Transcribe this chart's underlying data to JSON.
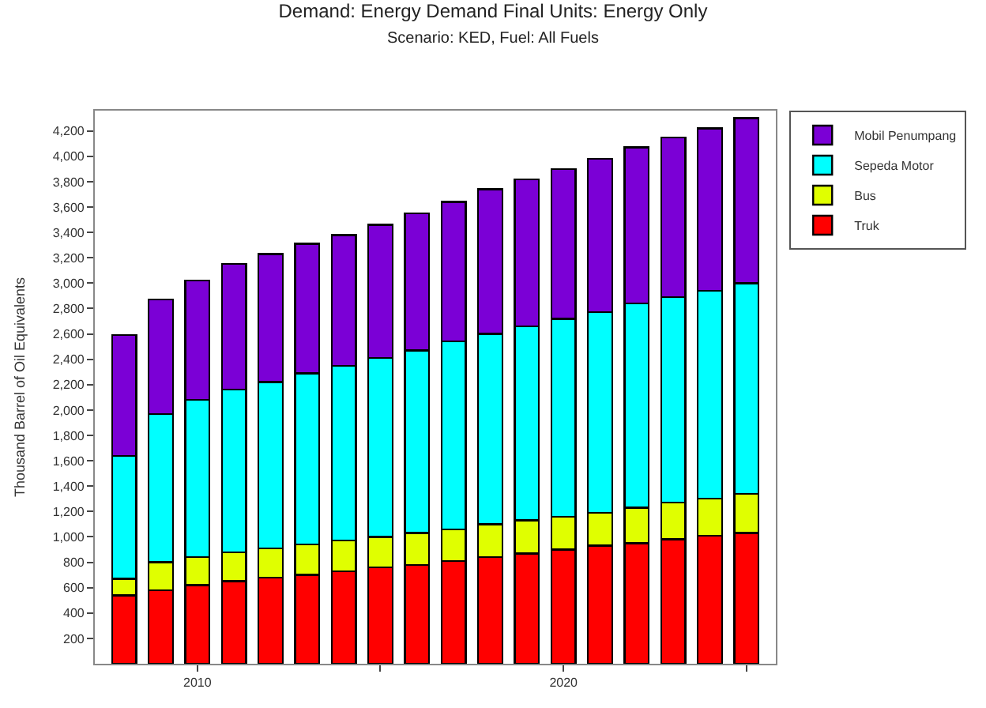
{
  "chart_data": {
    "type": "bar",
    "stacked": true,
    "title": "Demand: Energy Demand Final Units: Energy Only",
    "subtitle": "Scenario: KED, Fuel: All Fuels",
    "ylabel": "Thousand Barrel of Oil Equivalents",
    "x": [
      2008,
      2009,
      2010,
      2011,
      2012,
      2013,
      2014,
      2015,
      2016,
      2017,
      2018,
      2019,
      2020,
      2021,
      2022,
      2023,
      2024,
      2025
    ],
    "xlim": [
      2007.2,
      2025.8
    ],
    "xticks": [
      2010,
      {
        "value": 2015,
        "label": null
      },
      2020,
      {
        "value": 2025,
        "label": null
      }
    ],
    "ylim": [
      0,
      4360
    ],
    "yticks": [
      {
        "value": 200,
        "label": "200"
      },
      {
        "value": 400,
        "label": "400"
      },
      {
        "value": 600,
        "label": "600"
      },
      {
        "value": 800,
        "label": "800"
      },
      {
        "value": 1000,
        "label": "1,000"
      },
      {
        "value": 1200,
        "label": "1,200"
      },
      {
        "value": 1400,
        "label": "1,400"
      },
      {
        "value": 1600,
        "label": "1,600"
      },
      {
        "value": 1800,
        "label": "1,800"
      },
      {
        "value": 2000,
        "label": "2,000"
      },
      {
        "value": 2200,
        "label": "2,200"
      },
      {
        "value": 2400,
        "label": "2,400"
      },
      {
        "value": 2600,
        "label": "2,600"
      },
      {
        "value": 2800,
        "label": "2,800"
      },
      {
        "value": 3000,
        "label": "3,000"
      },
      {
        "value": 3200,
        "label": "3,200"
      },
      {
        "value": 3400,
        "label": "3,400"
      },
      {
        "value": 3600,
        "label": "3,600"
      },
      {
        "value": 3800,
        "label": "3,800"
      },
      {
        "value": 4000,
        "label": "4,000"
      },
      {
        "value": 4200,
        "label": "4,200"
      }
    ],
    "legend": "top right",
    "series": [
      {
        "name": "Truk",
        "color": "#ff0000",
        "values": [
          540,
          580,
          620,
          650,
          680,
          700,
          730,
          760,
          780,
          810,
          840,
          870,
          900,
          930,
          950,
          980,
          1010,
          1030
        ]
      },
      {
        "name": "Bus",
        "color": "#e0ff00",
        "values": [
          130,
          220,
          220,
          230,
          230,
          240,
          240,
          240,
          250,
          250,
          260,
          260,
          260,
          260,
          280,
          290,
          290,
          310
        ]
      },
      {
        "name": "Sepeda Motor",
        "color": "#00ffff",
        "values": [
          970,
          1170,
          1240,
          1280,
          1310,
          1350,
          1380,
          1410,
          1440,
          1480,
          1500,
          1530,
          1560,
          1580,
          1610,
          1620,
          1640,
          1660
        ]
      },
      {
        "name": "Mobil Penumpang",
        "color": "#7b00d6",
        "values": [
          950,
          900,
          940,
          990,
          1010,
          1020,
          1030,
          1050,
          1080,
          1100,
          1140,
          1160,
          1180,
          1210,
          1230,
          1260,
          1280,
          1300
        ]
      }
    ]
  }
}
